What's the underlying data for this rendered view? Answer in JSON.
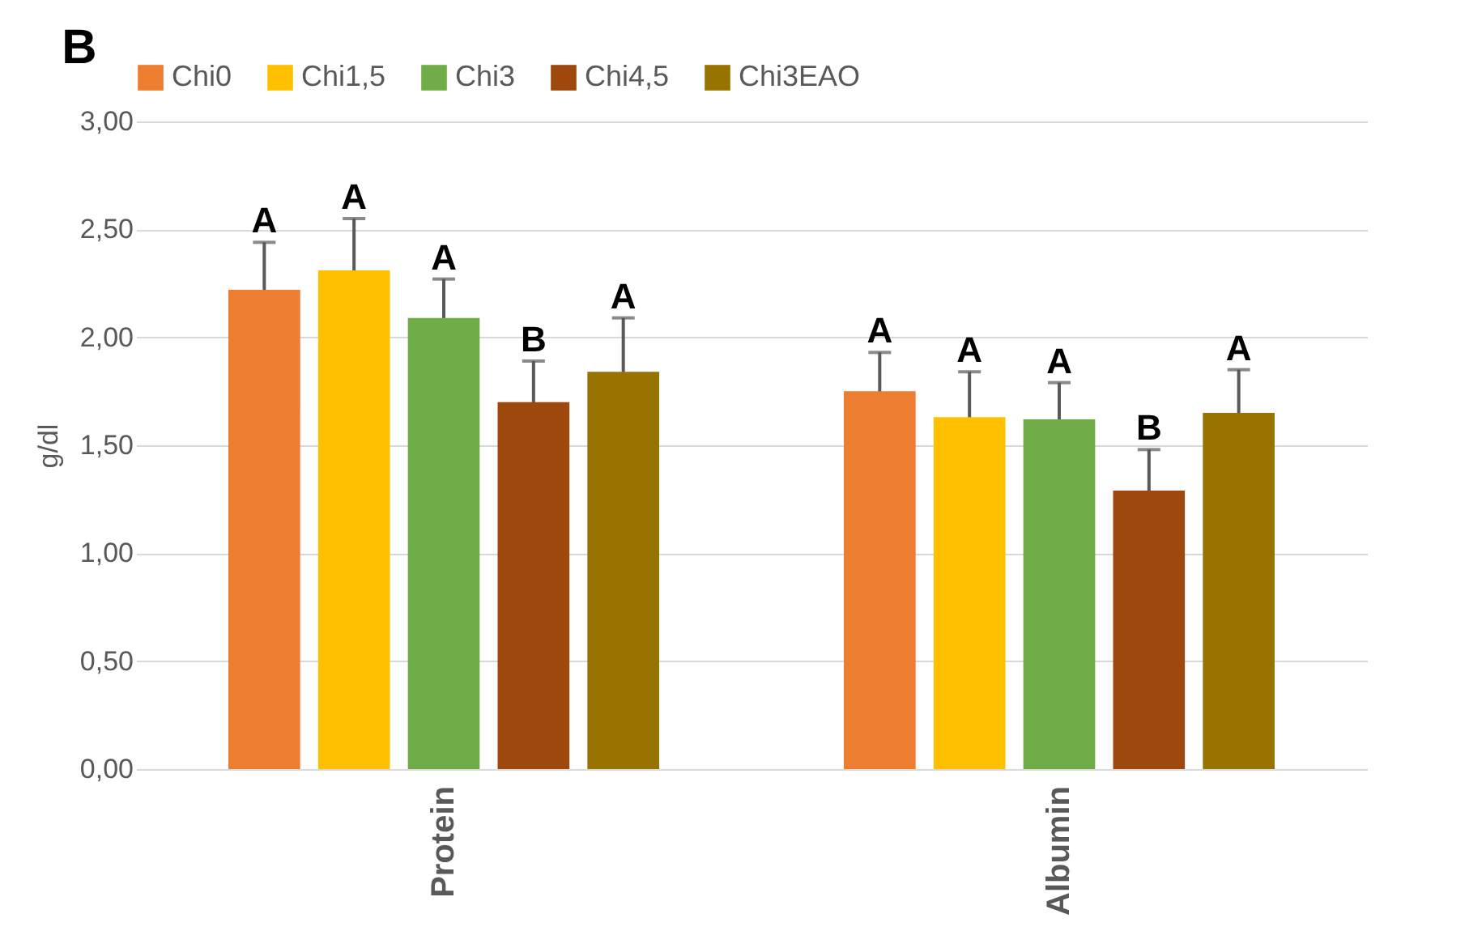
{
  "chart_data": {
    "type": "bar",
    "ylabel": "g/dl",
    "categories": [
      "Protein",
      "Albumin"
    ],
    "series": [
      {
        "name": "Chi0",
        "color": "#ed7d31",
        "values": [
          2.22,
          1.75
        ],
        "errors": [
          0.22,
          0.18
        ],
        "value_labels": [
          "A",
          "A"
        ]
      },
      {
        "name": "Chi1,5",
        "color": "#ffc000",
        "values": [
          2.31,
          1.63
        ],
        "errors": [
          0.24,
          0.21
        ],
        "value_labels": [
          "A",
          "A"
        ]
      },
      {
        "name": "Chi3",
        "color": "#70ad47",
        "values": [
          2.09,
          1.62
        ],
        "errors": [
          0.18,
          0.17
        ],
        "value_labels": [
          "A",
          "A"
        ]
      },
      {
        "name": "Chi4,5",
        "color": "#9e480e",
        "values": [
          1.7,
          1.29
        ],
        "errors": [
          0.19,
          0.19
        ],
        "value_labels": [
          "B",
          "B"
        ]
      },
      {
        "name": "Chi3EAO",
        "color": "#997300",
        "values": [
          1.84,
          1.65
        ],
        "errors": [
          0.25,
          0.2
        ],
        "value_labels": [
          "A",
          "A"
        ]
      }
    ],
    "ylim": [
      0,
      3
    ],
    "yticks": [
      {
        "value": 0,
        "label": "0,00"
      },
      {
        "value": 0.5,
        "label": "0,50"
      },
      {
        "value": 1,
        "label": "1,00"
      },
      {
        "value": 1.5,
        "label": "1,50"
      },
      {
        "value": 2,
        "label": "2,00"
      },
      {
        "value": 2.5,
        "label": "2,50"
      },
      {
        "value": 3,
        "label": "3,00"
      }
    ],
    "grid": "y",
    "legend": "top",
    "annotations": [
      "B"
    ]
  }
}
